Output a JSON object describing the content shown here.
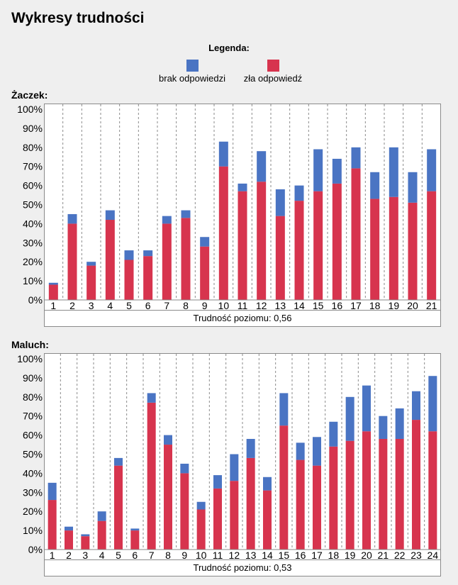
{
  "page": {
    "title": "Wykresy trudności"
  },
  "legend": {
    "title": "Legenda:",
    "items": [
      {
        "label": "brak odpowiedzi",
        "color": "#4a74c3"
      },
      {
        "label": "zła odpowiedź",
        "color": "#d7344e"
      }
    ]
  },
  "chart_data": [
    {
      "type": "bar",
      "stacked": true,
      "section_label": "Żaczek:",
      "caption": "Trudność poziomu: 0,56",
      "categories": [
        "1",
        "2",
        "3",
        "4",
        "5",
        "6",
        "7",
        "8",
        "9",
        "10",
        "11",
        "12",
        "13",
        "14",
        "15",
        "16",
        "17",
        "18",
        "19",
        "20",
        "21"
      ],
      "series": [
        {
          "name": "zła odpowiedź",
          "color": "#d7344e",
          "values": [
            8,
            40,
            18,
            42,
            21,
            23,
            40,
            43,
            28,
            70,
            57,
            62,
            44,
            52,
            57,
            61,
            69,
            53,
            54,
            51,
            57
          ]
        },
        {
          "name": "brak odpowiedzi",
          "color": "#4a74c3",
          "values": [
            1,
            5,
            2,
            5,
            5,
            3,
            4,
            4,
            5,
            13,
            4,
            16,
            14,
            8,
            22,
            13,
            11,
            14,
            26,
            16,
            22
          ]
        }
      ],
      "yticks": [
        "0%",
        "10%",
        "20%",
        "30%",
        "40%",
        "50%",
        "60%",
        "70%",
        "80%",
        "90%",
        "100%"
      ],
      "ylim": [
        0,
        100
      ],
      "grid": true
    },
    {
      "type": "bar",
      "stacked": true,
      "section_label": "Maluch:",
      "caption": "Trudność poziomu: 0,53",
      "categories": [
        "1",
        "2",
        "3",
        "4",
        "5",
        "6",
        "7",
        "8",
        "9",
        "10",
        "11",
        "12",
        "13",
        "14",
        "15",
        "16",
        "17",
        "18",
        "19",
        "20",
        "21",
        "22",
        "23",
        "24"
      ],
      "series": [
        {
          "name": "zła odpowiedź",
          "color": "#d7344e",
          "values": [
            26,
            10,
            7,
            15,
            44,
            10,
            77,
            55,
            40,
            21,
            32,
            36,
            48,
            31,
            65,
            47,
            44,
            54,
            57,
            62,
            58,
            58,
            68,
            62
          ]
        },
        {
          "name": "brak odpowiedzi",
          "color": "#4a74c3",
          "values": [
            9,
            2,
            1,
            5,
            4,
            1,
            5,
            5,
            5,
            4,
            7,
            14,
            10,
            7,
            17,
            9,
            15,
            13,
            23,
            24,
            12,
            16,
            15,
            29
          ]
        }
      ],
      "yticks": [
        "0%",
        "10%",
        "20%",
        "30%",
        "40%",
        "50%",
        "60%",
        "70%",
        "80%",
        "90%",
        "100%"
      ],
      "ylim": [
        0,
        100
      ],
      "grid": true
    }
  ]
}
